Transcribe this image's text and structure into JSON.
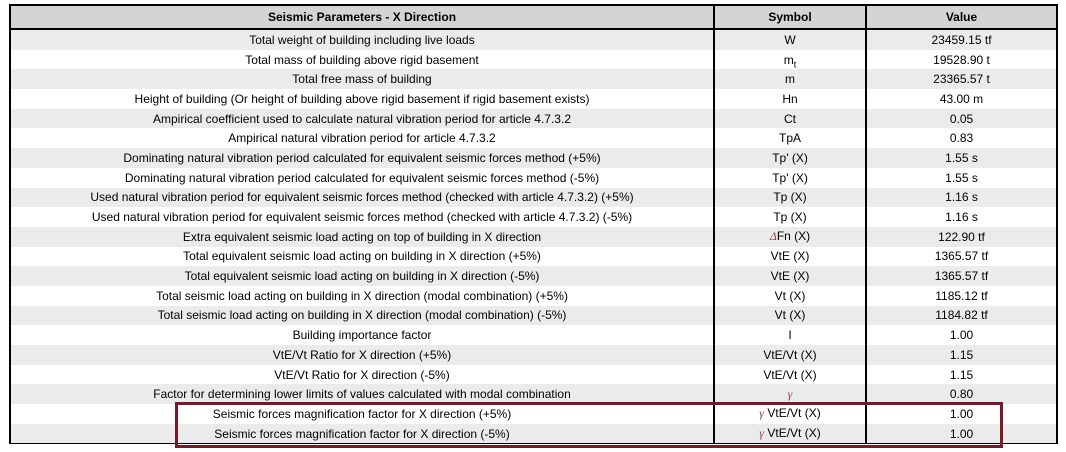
{
  "colors": {
    "highlight-border": "#7B1827",
    "greek-symbol": "#96404D",
    "header-bg": "#D4D4D4",
    "row-alt-bg": "#EBEBEB",
    "table-border": "#000000"
  },
  "table": {
    "header": {
      "parameter": "Seismic Parameters - X Direction",
      "symbol": "Symbol",
      "value": "Value"
    },
    "rows": [
      {
        "description": "Total weight of building including live loads",
        "symbol": {
          "greek": "",
          "main": "W",
          "sub": ""
        },
        "value": "23459.15 tf",
        "highlighted": false
      },
      {
        "description": "Total mass of building above rigid basement",
        "symbol": {
          "greek": "",
          "main": "m",
          "sub": "t"
        },
        "value": "19528.90 t",
        "highlighted": false
      },
      {
        "description": "Total free mass of building",
        "symbol": {
          "greek": "",
          "main": "m",
          "sub": ""
        },
        "value": "23365.57 t",
        "highlighted": false
      },
      {
        "description": "Height of building (Or height of building above rigid basement if rigid basement exists)",
        "symbol": {
          "greek": "",
          "main": "Hn",
          "sub": ""
        },
        "value": "43.00 m",
        "highlighted": false
      },
      {
        "description": "Ampirical coefficient used to calculate natural vibration period for article 4.7.3.2",
        "symbol": {
          "greek": "",
          "main": "Ct",
          "sub": ""
        },
        "value": "0.05",
        "highlighted": false
      },
      {
        "description": "Ampirical natural vibration period for article 4.7.3.2",
        "symbol": {
          "greek": "",
          "main": "TpA",
          "sub": ""
        },
        "value": "0.83",
        "highlighted": false
      },
      {
        "description": "Dominating natural vibration period calculated for equivalent seismic forces method (+5%)",
        "symbol": {
          "greek": "",
          "main": "Tp' (X)",
          "sub": ""
        },
        "value": "1.55 s",
        "highlighted": false
      },
      {
        "description": "Dominating natural vibration period calculated for equivalent seismic forces method (-5%)",
        "symbol": {
          "greek": "",
          "main": "Tp' (X)",
          "sub": ""
        },
        "value": "1.55 s",
        "highlighted": false
      },
      {
        "description": "Used natural vibration period for equivalent seismic forces method (checked with article 4.7.3.2) (+5%)",
        "symbol": {
          "greek": "",
          "main": "Tp (X)",
          "sub": ""
        },
        "value": "1.16 s",
        "highlighted": false
      },
      {
        "description": "Used natural vibration period for equivalent seismic forces method (checked with article 4.7.3.2) (-5%)",
        "symbol": {
          "greek": "",
          "main": "Tp (X)",
          "sub": ""
        },
        "value": "1.16 s",
        "highlighted": false
      },
      {
        "description": "Extra equivalent seismic load acting on top of building in X direction",
        "symbol": {
          "greek": "Δ",
          "main": "Fn (X)",
          "sub": ""
        },
        "value": "122.90 tf",
        "highlighted": false
      },
      {
        "description": "Total equivalent seismic load acting on building in X direction (+5%)",
        "symbol": {
          "greek": "",
          "main": "VtE (X)",
          "sub": ""
        },
        "value": "1365.57 tf",
        "highlighted": false
      },
      {
        "description": "Total equivalent seismic load acting on building in X direction (-5%)",
        "symbol": {
          "greek": "",
          "main": "VtE (X)",
          "sub": ""
        },
        "value": "1365.57 tf",
        "highlighted": false
      },
      {
        "description": "Total seismic load acting on building in X direction (modal combination) (+5%)",
        "symbol": {
          "greek": "",
          "main": "Vt (X)",
          "sub": ""
        },
        "value": "1185.12 tf",
        "highlighted": false
      },
      {
        "description": "Total seismic load acting on building in X direction (modal combination) (-5%)",
        "symbol": {
          "greek": "",
          "main": "Vt (X)",
          "sub": ""
        },
        "value": "1184.82 tf",
        "highlighted": false
      },
      {
        "description": "Building importance factor",
        "symbol": {
          "greek": "",
          "main": "I",
          "sub": ""
        },
        "value": "1.00",
        "highlighted": false
      },
      {
        "description": "VtE/Vt Ratio for X direction (+5%)",
        "symbol": {
          "greek": "",
          "main": "VtE/Vt (X)",
          "sub": ""
        },
        "value": "1.15",
        "highlighted": false
      },
      {
        "description": "VtE/Vt Ratio for X direction (-5%)",
        "symbol": {
          "greek": "",
          "main": "VtE/Vt (X)",
          "sub": ""
        },
        "value": "1.15",
        "highlighted": false
      },
      {
        "description": "Factor for determining lower limits of values calculated with modal combination",
        "symbol": {
          "greek": "γ",
          "main": "",
          "sub": ""
        },
        "value": "0.80",
        "highlighted": false
      },
      {
        "description": "Seismic forces magnification factor for X direction (+5%)",
        "symbol": {
          "greek": "γ",
          "main": " VtE/Vt (X)",
          "sub": ""
        },
        "value": "1.00",
        "highlighted": true
      },
      {
        "description": "Seismic forces magnification factor for X direction (-5%)",
        "symbol": {
          "greek": "γ",
          "main": " VtE/Vt (X)",
          "sub": ""
        },
        "value": "1.00",
        "highlighted": true
      }
    ]
  }
}
